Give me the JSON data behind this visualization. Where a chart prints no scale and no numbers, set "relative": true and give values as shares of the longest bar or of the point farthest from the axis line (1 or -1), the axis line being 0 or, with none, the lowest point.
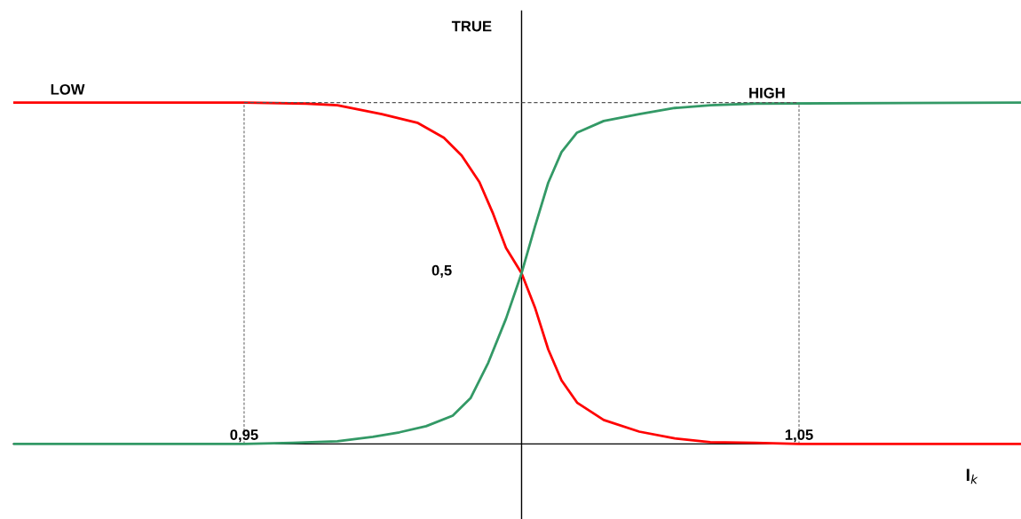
{
  "chart_data": {
    "type": "line",
    "relative": true,
    "xlabel": "I$_{k}$",
    "xlim": [
      0.9084,
      1.09
    ],
    "xticks": [
      {
        "value": 0.95,
        "label": "0,95"
      },
      {
        "value": 1.05,
        "label": "1,05"
      }
    ],
    "grid": false,
    "marker": "none",
    "line_style": "solid",
    "series": [
      {
        "name": "LOW",
        "color": "#ff0000",
        "x": [
          0.9084,
          0.95,
          0.9612,
          0.9668,
          0.97,
          0.9748,
          0.9812,
          0.986,
          0.9892,
          0.9924,
          0.9948,
          0.9972,
          1.0,
          1.0024,
          1.0048,
          1.0072,
          1.01,
          1.0148,
          1.0212,
          1.0276,
          1.034,
          1.042,
          1.05,
          1.09
        ],
        "values": [
          1,
          1,
          0.997,
          0.992,
          0.982,
          0.966,
          0.941,
          0.897,
          0.845,
          0.767,
          0.677,
          0.574,
          0.5,
          0.4,
          0.277,
          0.186,
          0.121,
          0.07,
          0.036,
          0.016,
          0.005,
          0.003,
          0,
          0
        ]
      },
      {
        "name": "HIGH",
        "color": "#339966",
        "x": [
          0.9084,
          0.95,
          0.9588,
          0.9668,
          0.9732,
          0.978,
          0.9828,
          0.9876,
          0.9908,
          0.994,
          0.9972,
          1.0,
          1.0024,
          1.0048,
          1.0072,
          1.01,
          1.0148,
          1.0212,
          1.0276,
          1.034,
          1.042,
          1.09
        ],
        "values": [
          0,
          0,
          0.003,
          0.008,
          0.021,
          0.034,
          0.052,
          0.083,
          0.134,
          0.238,
          0.367,
          0.5,
          0.636,
          0.765,
          0.855,
          0.912,
          0.946,
          0.966,
          0.984,
          0.992,
          0.997,
          1
        ]
      }
    ],
    "ref_lines": [
      {
        "axis": "x",
        "value": 1.0,
        "line_style": "solid",
        "color": "#000000"
      },
      {
        "axis": "x",
        "value": 0.95,
        "line_style": "dashed",
        "color": "#555555"
      },
      {
        "axis": "x",
        "value": 1.05,
        "line_style": "dashed",
        "color": "#555555"
      },
      {
        "axis": "y",
        "value": 1,
        "line_style": "dashed",
        "color": "#555555"
      }
    ],
    "annotations": [
      "TRUE",
      "0,5"
    ]
  }
}
